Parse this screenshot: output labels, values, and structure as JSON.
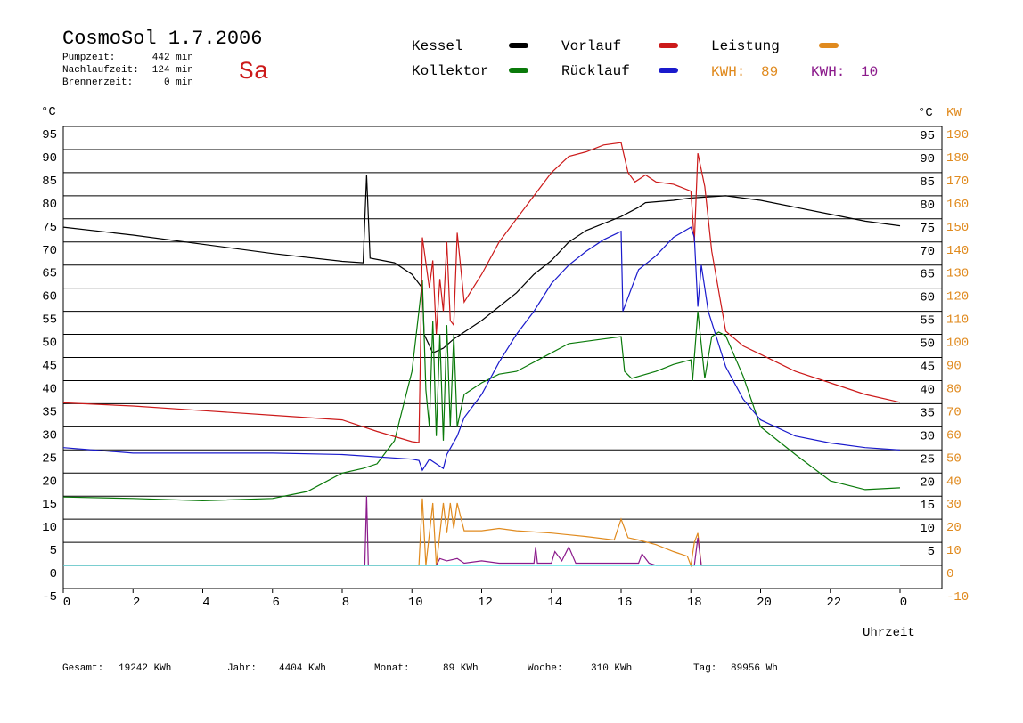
{
  "chart_data": {
    "type": "line",
    "title": "CosmoSol 1.7.2006",
    "day": "Sa",
    "info": [
      {
        "label": "Pumpzeit:",
        "value": "442 min"
      },
      {
        "label": "Nachlaufzeit:",
        "value": "124 min"
      },
      {
        "label": "Brennerzeit:",
        "value": "0 min"
      }
    ],
    "kwh_labels": [
      {
        "label": "KWH:",
        "value": 89,
        "color": "#e08a1e"
      },
      {
        "label": "KWH:",
        "value": 10,
        "color": "#8b1a8b"
      }
    ],
    "footer": [
      {
        "label": "Gesamt:",
        "value": "19242 KWh"
      },
      {
        "label": "Jahr:",
        "value": "4404 KWh"
      },
      {
        "label": "Monat:",
        "value": "89 KWh"
      },
      {
        "label": "Woche:",
        "value": "310 KWh"
      },
      {
        "label": "Tag:",
        "value": "89956 Wh"
      }
    ],
    "xlabel": "Uhrzeit",
    "ylabel": "°C",
    "ylabel_right": "°C",
    "y2label": "KW",
    "xlim": [
      0,
      24
    ],
    "xticks": [
      0,
      2,
      4,
      6,
      8,
      10,
      12,
      14,
      16,
      18,
      20,
      22,
      {
        "value": 24,
        "label": "0"
      }
    ],
    "ylim": [
      -5,
      95
    ],
    "yticks": [
      -5,
      0,
      5,
      10,
      15,
      20,
      25,
      30,
      35,
      40,
      45,
      50,
      55,
      60,
      65,
      70,
      75,
      80,
      85,
      90,
      95
    ],
    "yticks_right": [
      5,
      10,
      15,
      20,
      25,
      30,
      35,
      40,
      45,
      50,
      55,
      60,
      65,
      70,
      75,
      80,
      85,
      90,
      95
    ],
    "y2lim": [
      -10,
      190
    ],
    "y2ticks": [
      -10,
      0,
      10,
      20,
      30,
      40,
      50,
      60,
      70,
      80,
      90,
      100,
      110,
      120,
      130,
      140,
      150,
      160,
      170,
      180,
      190
    ],
    "grid": true,
    "series": [
      {
        "name": "Kessel",
        "color": "#000000",
        "x": [
          0,
          2,
          4,
          6,
          8,
          8.6,
          8.7,
          8.8,
          9.5,
          10,
          10.2,
          10.3,
          10.35,
          10.6,
          10.9,
          11.2,
          11.6,
          12,
          12.5,
          13,
          13.5,
          14,
          14.5,
          15,
          16,
          16.5,
          16.7,
          17.5,
          18,
          19,
          20,
          21,
          22,
          23,
          24
        ],
        "values": [
          73.2,
          71.5,
          69.5,
          67.5,
          65.8,
          65.5,
          84.5,
          66.5,
          65.5,
          63,
          61,
          60,
          50,
          46,
          47,
          49,
          51,
          53,
          56,
          59,
          63,
          66,
          70,
          72.5,
          75.5,
          77.5,
          78.5,
          79,
          79.5,
          80,
          79,
          77.5,
          76,
          74.5,
          73.5
        ]
      },
      {
        "name": "Kollektor",
        "color": "#0a7a0a",
        "x": [
          0,
          2,
          4,
          6,
          7,
          8,
          8.6,
          9,
          9.5,
          10,
          10.2,
          10.3,
          10.4,
          10.5,
          10.6,
          10.7,
          10.8,
          10.9,
          11,
          11.1,
          11.2,
          11.3,
          11.5,
          12,
          12.5,
          13,
          14,
          14.5,
          15,
          15.5,
          16,
          16.1,
          16.3,
          17,
          17.5,
          18,
          18.05,
          18.2,
          18.4,
          18.6,
          18.8,
          19,
          19.5,
          20,
          21,
          22,
          23,
          24
        ],
        "values": [
          14.8,
          14.5,
          14,
          14.5,
          16,
          20,
          21,
          22,
          27,
          42,
          55,
          61.7,
          38,
          30,
          53,
          28,
          50,
          27,
          52,
          30,
          50,
          30,
          37,
          39.5,
          41.4,
          42,
          46,
          48,
          48.5,
          49,
          49.5,
          42,
          40.5,
          42,
          43.5,
          44.5,
          40,
          55,
          40.5,
          49.5,
          50.5,
          49.7,
          41,
          30,
          24,
          18.3,
          16.4,
          16.8
        ]
      },
      {
        "name": "Vorlauf",
        "color": "#cc1a1a",
        "x": [
          0,
          2,
          4,
          6,
          8,
          9,
          10,
          10.2,
          10.3,
          10.5,
          10.6,
          10.7,
          10.8,
          10.9,
          11,
          11.1,
          11.2,
          11.3,
          11.5,
          12,
          12.5,
          13,
          13.5,
          14,
          14.5,
          15,
          15.5,
          16,
          16.2,
          16.4,
          16.7,
          17,
          17.5,
          18,
          18.1,
          18.2,
          18.4,
          18.6,
          19,
          19.5,
          20,
          21,
          22,
          23,
          24
        ],
        "values": [
          35.2,
          34.5,
          33.5,
          32.5,
          31.5,
          29,
          26.8,
          26.6,
          71,
          60,
          66,
          50,
          62,
          55,
          70,
          53,
          52,
          72,
          57,
          63,
          70,
          75,
          80,
          85,
          88.5,
          89.5,
          91,
          91.5,
          85,
          83,
          84.5,
          83,
          82.5,
          81,
          70,
          89.2,
          82,
          68,
          50.7,
          47.5,
          45.7,
          42,
          39.5,
          37,
          35.3
        ]
      },
      {
        "name": "Rücklauf",
        "color": "#1a1acc",
        "x": [
          0,
          2,
          4,
          6,
          8,
          10,
          10.2,
          10.3,
          10.5,
          10.7,
          10.9,
          11,
          11.3,
          11.5,
          12,
          12.5,
          13,
          13.5,
          14,
          14.5,
          15,
          15.5,
          16,
          16.05,
          16.3,
          16.5,
          17,
          17.5,
          18,
          18.1,
          18.2,
          18.3,
          18.5,
          19,
          19.5,
          20,
          21,
          22,
          23,
          24
        ],
        "values": [
          25.5,
          24.3,
          24.3,
          24.3,
          24,
          23,
          22.7,
          20.6,
          23,
          22,
          21,
          24,
          28,
          32,
          37,
          44,
          50,
          55,
          61,
          65,
          68,
          70.5,
          72.3,
          55,
          60,
          64,
          67,
          71,
          73.2,
          71,
          56,
          65,
          55,
          43,
          36,
          31.5,
          28,
          26.5,
          25.5,
          25
        ]
      },
      {
        "name": "Leistung",
        "color": "#e08a1e",
        "axis": "y2",
        "x": [
          0,
          10.2,
          10.3,
          10.4,
          10.6,
          10.7,
          10.9,
          11,
          11.1,
          11.2,
          11.3,
          11.5,
          12,
          12.5,
          13,
          14,
          15,
          15.8,
          16,
          16.2,
          16.5,
          17,
          17.5,
          17.9,
          18,
          18.1,
          18.2,
          18.3,
          24
        ],
        "values": [
          0,
          0,
          29,
          0,
          27,
          0,
          27,
          14,
          27,
          16,
          27,
          15,
          15,
          16,
          15,
          14,
          12.5,
          11,
          20,
          12,
          11,
          9,
          6,
          4,
          0,
          10,
          14,
          0,
          0
        ]
      },
      {
        "color": "#8b1a8b",
        "axis": "y2",
        "x": [
          0,
          8.65,
          8.7,
          8.75,
          10.7,
          10.8,
          11,
          11.3,
          11.5,
          12,
          12.5,
          13.5,
          13.55,
          13.6,
          14,
          14.1,
          14.3,
          14.5,
          14.7,
          15,
          16,
          16.5,
          16.6,
          16.8,
          17,
          18.1,
          18.2,
          18.3,
          24
        ],
        "values": [
          0,
          0,
          30,
          0,
          0,
          3,
          2,
          3,
          1,
          2,
          1,
          1,
          8,
          1,
          1,
          6,
          2,
          8,
          1,
          1,
          1,
          1,
          5,
          1,
          0,
          0,
          12,
          0,
          0
        ]
      },
      {
        "color": "#40e0e0",
        "x": [
          0,
          24
        ],
        "values": [
          0,
          0
        ]
      }
    ]
  }
}
